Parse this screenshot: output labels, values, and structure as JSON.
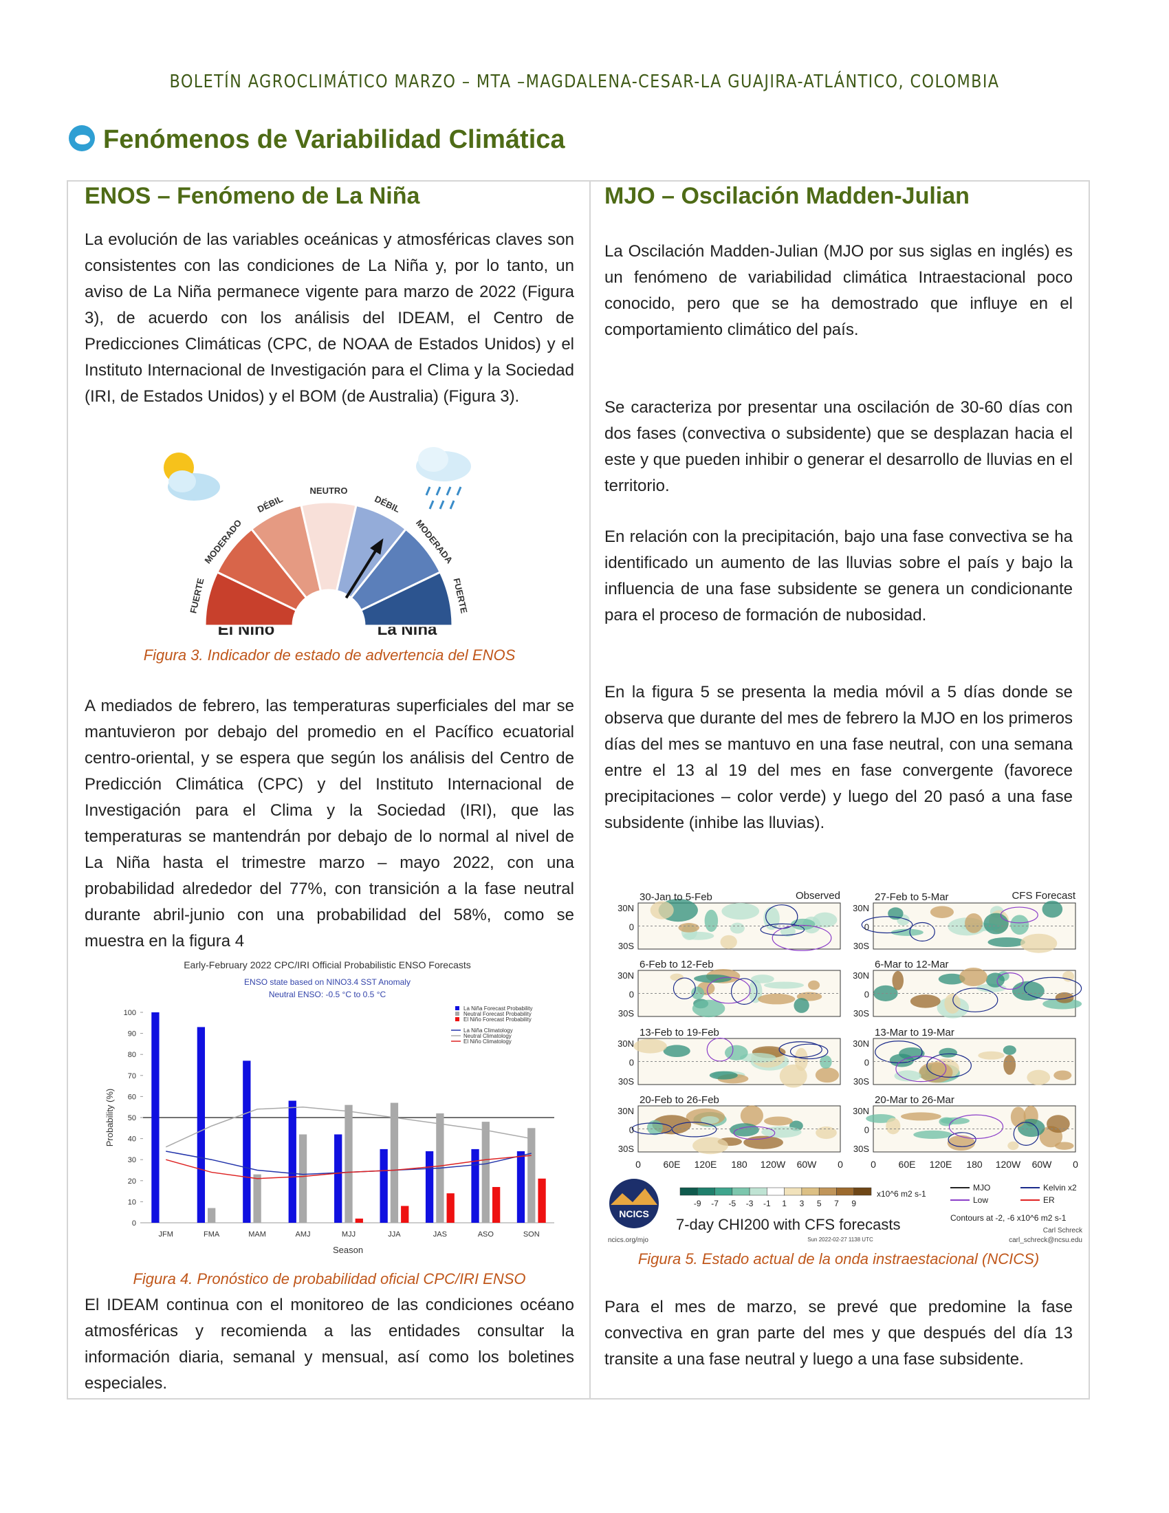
{
  "header": {
    "title": "BOLETÍN AGROCLIMÁTICO MARZO – MTA –MAGDALENA-CESAR-LA GUAJIRA-ATLÁNTICO, COLOMBIA"
  },
  "section": {
    "title": "Fenómenos de Variabilidad Climática"
  },
  "left": {
    "heading": "ENOS – Fenómeno de La Niña",
    "paragraphs": [
      "La evolución de las variables oceánicas y atmosféricas claves son consistentes con las condiciones de La Niña y, por lo tanto, un aviso de La Niña permanece vigente para marzo de 2022 (Figura 3), de acuerdo con los análisis del IDEAM, el Centro de Predicciones Climáticas (CPC, de NOAA de Estados Unidos) y el Instituto Internacional de Investigación para el Clima y la Sociedad (IRI, de Estados Unidos) y el BOM (de Australia) (Figura 3).",
      "A mediados de febrero, las temperaturas superficiales del mar se mantuvieron por debajo del promedio en el Pacífico ecuatorial centro-oriental, y se espera que según los análisis del Centro de Predicción Climática (CPC) y del Instituto Internacional de Investigación para el Clima y la Sociedad (IRI), que las temperaturas se mantendrán por debajo de lo normal al nivel de La Niña hasta el trimestre marzo – mayo 2022, con una probabilidad alrededor del 77%, con transición a la fase neutral durante abril-junio con una probabilidad del 58%, como se muestra en la figura 4",
      "El IDEAM continua con el monitoreo de las condiciones océano atmosféricas y recomienda a las entidades consultar la información diaria, semanal y mensual, así como los boletines especiales."
    ],
    "figure3": {
      "labels": [
        "FUERTE",
        "MODERADO",
        "DÉBIL",
        "NEUTRO",
        "DÉBIL",
        "MODERADA",
        "FUERTE"
      ],
      "el_nino": "El Niño",
      "la_nina": "La Niña",
      "caption": "Figura 3. Indicador de estado de advertencia del ENOS"
    },
    "figure4_caption": "Figura 4. Pronóstico de probabilidad oficial CPC/IRI ENSO"
  },
  "chart_data": {
    "type": "bar",
    "title": "Early-February 2022 CPC/IRI Official Probabilistic ENSO Forecasts",
    "subtitle": "ENSO state based on NINO3.4 SST Anomaly",
    "subtitle2": "Neutral ENSO: -0.5 °C to 0.5 °C",
    "x_label": "Season",
    "y_label": "Probability (%)",
    "categories": [
      "JFM",
      "FMA",
      "MAM",
      "AMJ",
      "MJJ",
      "JJA",
      "JAS",
      "ASO",
      "SON"
    ],
    "series": [
      {
        "name": "La Niña Forecast Probability",
        "type": "bar",
        "color": "#1010e0",
        "values": [
          100,
          93,
          77,
          58,
          42,
          35,
          34,
          35,
          34
        ]
      },
      {
        "name": "Neutral Forecast Probability",
        "type": "bar",
        "color": "#a9a9a9",
        "values": [
          0,
          7,
          23,
          42,
          56,
          57,
          52,
          48,
          45
        ]
      },
      {
        "name": "El Niño Forecast Probability",
        "type": "bar",
        "color": "#ee1111",
        "values": [
          0,
          0,
          0,
          0,
          2,
          8,
          14,
          17,
          21
        ]
      },
      {
        "name": "La Niña Climatology",
        "type": "line",
        "color": "#2233aa",
        "values": [
          34,
          30,
          25,
          23,
          24,
          25,
          26,
          28,
          33
        ]
      },
      {
        "name": "Neutral Climatology",
        "type": "line",
        "color": "#aaaaaa",
        "values": [
          36,
          46,
          54,
          55,
          53,
          50,
          47,
          44,
          40
        ]
      },
      {
        "name": "El Niño Climatology",
        "type": "line",
        "color": "#dd2222",
        "values": [
          30,
          24,
          21,
          22,
          24,
          25,
          27,
          30,
          32
        ]
      }
    ],
    "ylim": [
      0,
      100
    ],
    "yticks": [
      0,
      10,
      20,
      30,
      40,
      50,
      60,
      70,
      80,
      90,
      100
    ],
    "reference_line": 50
  },
  "right": {
    "heading": "MJO – Oscilación Madden-Julian",
    "paragraphs": [
      "La Oscilación Madden-Julian (MJO por sus siglas en inglés) es un fenómeno de variabilidad climática Intraestacional poco conocido, pero que se ha demostrado que influye en el comportamiento climático del país.",
      "Se caracteriza por presentar una oscilación de 30-60 días con dos fases (convectiva o subsidente) que se desplazan hacia el este y que pueden inhibir o generar el desarrollo de lluvias en el territorio.",
      "En relación con la precipitación, bajo una fase convectiva se ha identificado un aumento de las lluvias sobre el país y bajo la influencia de una fase subsidente se genera un condicionante para el proceso de formación de nubosidad.",
      "En la figura 5 se presenta la media móvil a 5 días donde se observa que durante del mes de febrero la MJO en los primeros días del mes se mantuvo en una fase neutral, con una semana entre el 13 al 19 del mes en fase convergente (favorece precipitaciones – color verde) y luego del 20 pasó a una fase subsidente (inhibe las lluvias).",
      "Para el mes de marzo, se prevé que predomine la fase convectiva en gran parte del mes y que después del día 13 transite a una fase neutral y luego a una fase subsidente."
    ],
    "figure5": {
      "observed": "Observed",
      "forecast": "CFS Forecast",
      "panels_left": [
        "30-Jan to 5-Feb",
        "6-Feb to 12-Feb",
        "13-Feb to 19-Feb",
        "20-Feb to 26-Feb"
      ],
      "panels_right": [
        "27-Feb to 5-Mar",
        "6-Mar to 12-Mar",
        "13-Mar to 19-Mar",
        "20-Mar to 26-Mar"
      ],
      "lat_labels": [
        "30N",
        "0",
        "30S"
      ],
      "lon_labels": [
        "0",
        "60E",
        "120E",
        "180",
        "120W",
        "60W",
        "0"
      ],
      "colorbar_labels": [
        "-9",
        "-7",
        "-5",
        "-3",
        "-1",
        "1",
        "3",
        "5",
        "7",
        "9"
      ],
      "colorbar_unit": "x10^6 m2 s-1",
      "legend": [
        "MJO",
        "Kelvin x2",
        "Low",
        "ER"
      ],
      "contours": "Contours at -2, -6 x10^6 m2 s-1",
      "product": "7-day CHI200 with CFS forecasts",
      "logo": "NCICS",
      "url": "ncics.org/mjo",
      "author": "Carl Schreck",
      "email": "carl_schreck@ncsu.edu",
      "timestamp": "Sun 2022-02-27 1138 UTC",
      "caption": "Figura 5. Estado actual de la onda instraestacional (NCICS)"
    }
  }
}
